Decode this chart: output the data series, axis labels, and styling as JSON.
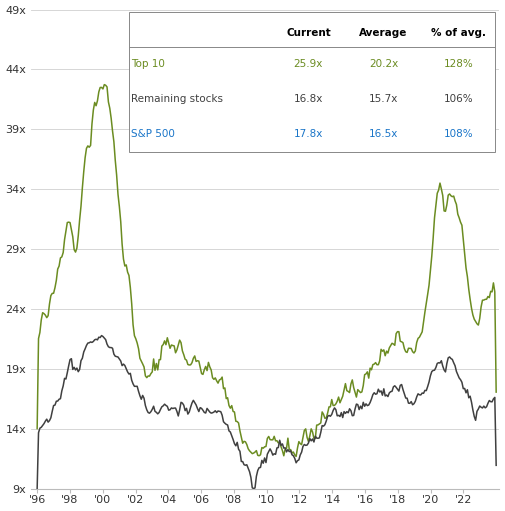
{
  "ylim": [
    9,
    49
  ],
  "yticks": [
    9,
    14,
    19,
    24,
    29,
    34,
    39,
    44,
    49
  ],
  "xtick_years": [
    1996,
    1998,
    2000,
    2002,
    2004,
    2006,
    2008,
    2010,
    2012,
    2014,
    2016,
    2018,
    2020,
    2022
  ],
  "xtick_labels": [
    "'96",
    "'98",
    "'00",
    "'02",
    "'04",
    "'06",
    "'08",
    "'10",
    "'12",
    "'14",
    "'16",
    "'18",
    "'20",
    "'22"
  ],
  "color_top10": "#6b8c21",
  "color_remaining": "#404040",
  "color_sp500": "#1a75c8",
  "legend_labels": [
    "Top 10",
    "Remaining stocks",
    "S&P 500"
  ],
  "legend_current": [
    "25.9x",
    "16.8x",
    "17.8x"
  ],
  "legend_average": [
    "20.2x",
    "15.7x",
    "16.5x"
  ],
  "legend_pct": [
    "128%",
    "106%",
    "108%"
  ],
  "bg_color": "#ffffff",
  "grid_color": "#d0d0d0",
  "xlim_left": 1995.6,
  "xlim_right": 2024.2
}
